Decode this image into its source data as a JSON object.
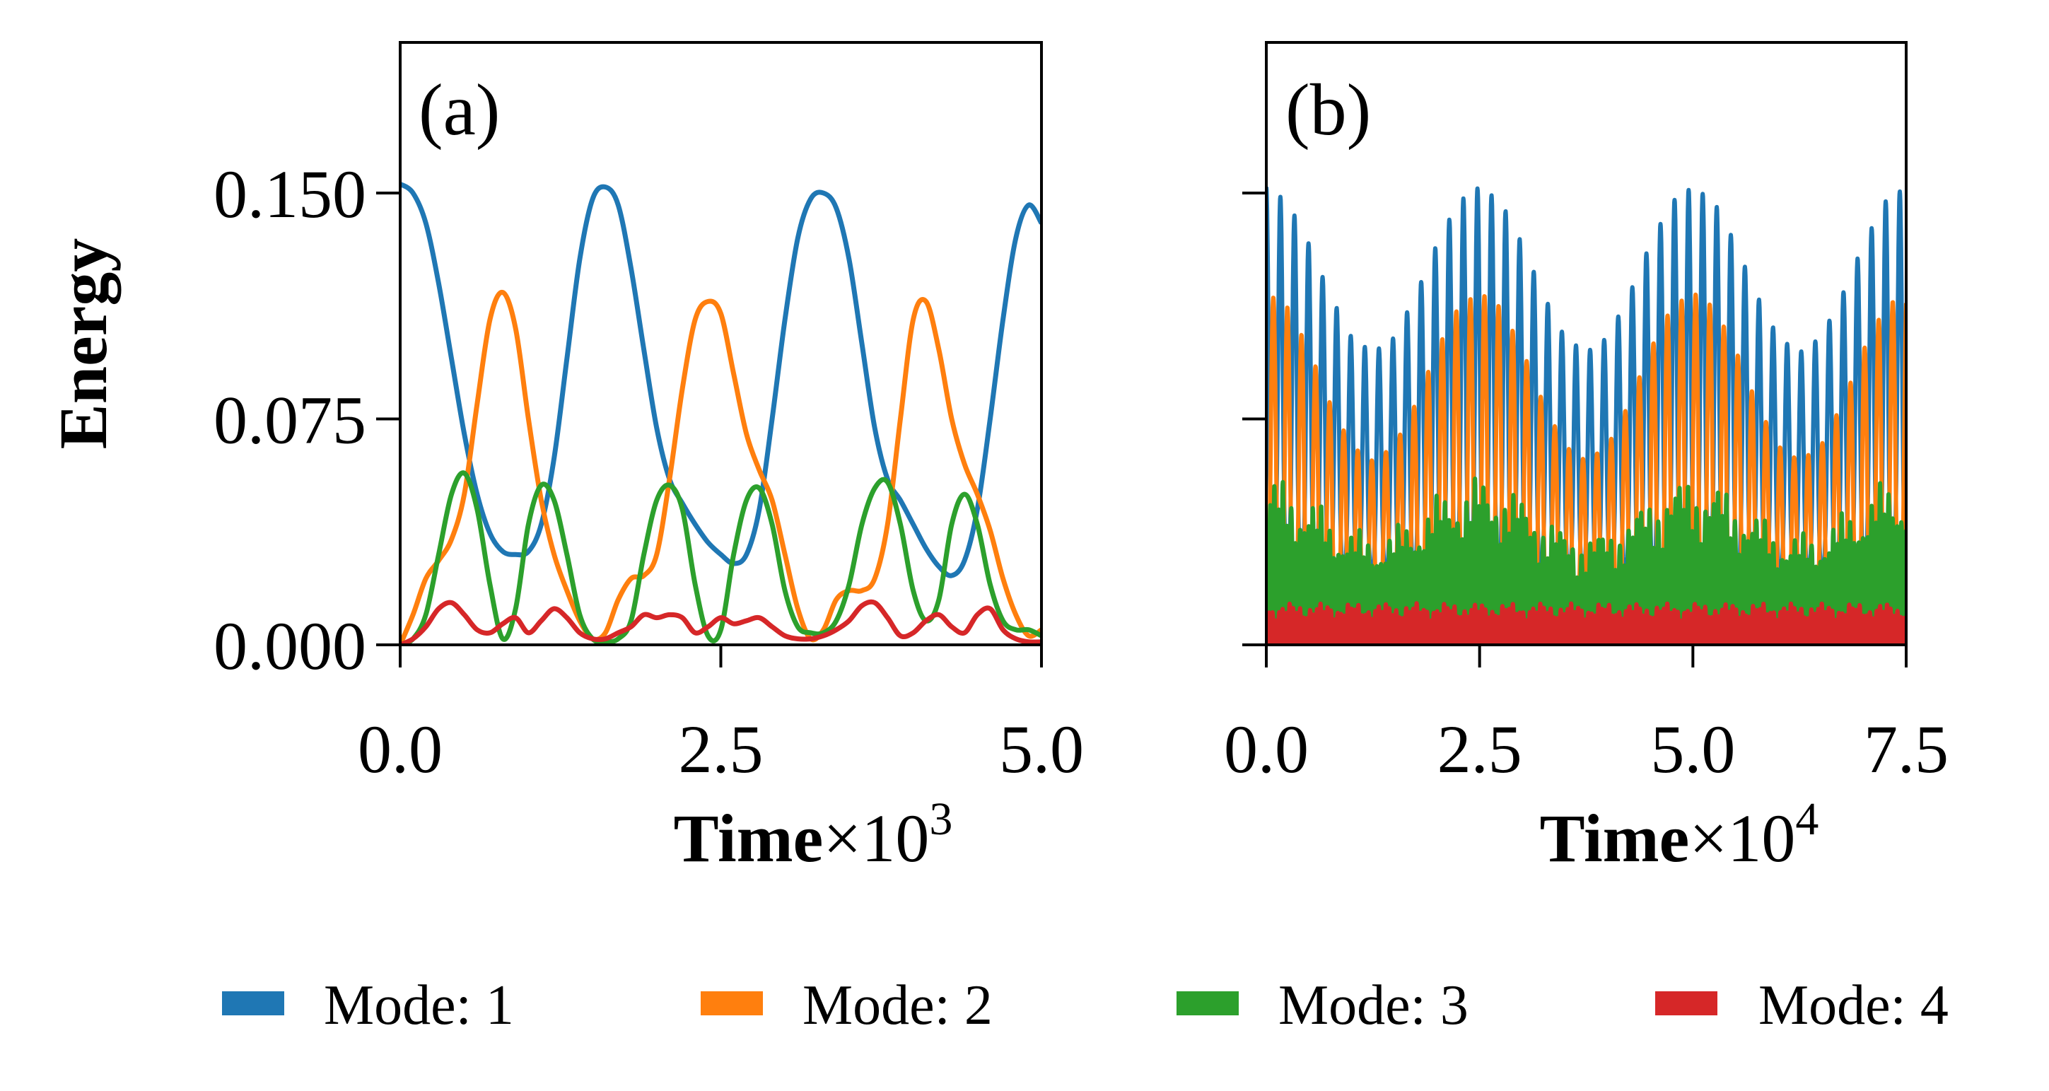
{
  "legend": {
    "placement": "bottom",
    "items": [
      {
        "label": "Mode: 1",
        "color": "#1f77b4"
      },
      {
        "label": "Mode: 2",
        "color": "#ff7f0e"
      },
      {
        "label": "Mode: 3",
        "color": "#2ca02c"
      },
      {
        "label": "Mode: 4",
        "color": "#d62728"
      }
    ]
  },
  "chart_data": [
    {
      "type": "line",
      "panel_label": "(a)",
      "ylabel": "Energy",
      "xlabel": "Time",
      "xlabel_multiplier": "×10",
      "xlabel_exponent": "3",
      "xlim": [
        0,
        5
      ],
      "ylim": [
        0,
        0.2
      ],
      "xticks": [
        "0.0",
        "2.5",
        "5.0"
      ],
      "xtick_values": [
        0,
        2.5,
        5
      ],
      "yticks": [
        "0.000",
        "0.075",
        "0.150"
      ],
      "ytick_values": [
        0,
        0.075,
        0.15
      ],
      "grid": false,
      "x": [
        0,
        0.1,
        0.2,
        0.3,
        0.4,
        0.5,
        0.6,
        0.7,
        0.8,
        0.9,
        1.0,
        1.1,
        1.2,
        1.3,
        1.4,
        1.5,
        1.6,
        1.7,
        1.8,
        1.9,
        2.0,
        2.1,
        2.2,
        2.3,
        2.4,
        2.5,
        2.6,
        2.7,
        2.8,
        2.9,
        3.0,
        3.1,
        3.2,
        3.3,
        3.4,
        3.5,
        3.6,
        3.7,
        3.8,
        3.9,
        4.0,
        4.1,
        4.2,
        4.3,
        4.4,
        4.5,
        4.6,
        4.7,
        4.8,
        4.9,
        5.0
      ],
      "series": [
        {
          "name": "Mode: 1",
          "color": "#1f77b4",
          "values": [
            0.153,
            0.15,
            0.14,
            0.12,
            0.095,
            0.07,
            0.05,
            0.037,
            0.031,
            0.03,
            0.031,
            0.04,
            0.062,
            0.095,
            0.128,
            0.148,
            0.152,
            0.146,
            0.125,
            0.098,
            0.072,
            0.055,
            0.047,
            0.04,
            0.034,
            0.03,
            0.027,
            0.03,
            0.045,
            0.075,
            0.108,
            0.135,
            0.148,
            0.15,
            0.145,
            0.128,
            0.1,
            0.072,
            0.055,
            0.048,
            0.04,
            0.032,
            0.026,
            0.023,
            0.028,
            0.045,
            0.075,
            0.108,
            0.135,
            0.146,
            0.14
          ]
        },
        {
          "name": "Mode: 2",
          "color": "#ff7f0e",
          "values": [
            0.0,
            0.01,
            0.022,
            0.028,
            0.035,
            0.05,
            0.08,
            0.108,
            0.117,
            0.105,
            0.075,
            0.048,
            0.03,
            0.018,
            0.008,
            0.002,
            0.004,
            0.015,
            0.022,
            0.023,
            0.03,
            0.055,
            0.085,
            0.108,
            0.114,
            0.11,
            0.09,
            0.07,
            0.058,
            0.048,
            0.03,
            0.012,
            0.002,
            0.005,
            0.015,
            0.018,
            0.018,
            0.022,
            0.04,
            0.075,
            0.108,
            0.114,
            0.098,
            0.075,
            0.06,
            0.05,
            0.038,
            0.022,
            0.01,
            0.003,
            0.005
          ]
        },
        {
          "name": "Mode: 3",
          "color": "#2ca02c",
          "values": [
            0.0,
            0.002,
            0.01,
            0.03,
            0.05,
            0.057,
            0.045,
            0.02,
            0.002,
            0.012,
            0.04,
            0.053,
            0.048,
            0.03,
            0.01,
            0.002,
            0.001,
            0.002,
            0.008,
            0.03,
            0.048,
            0.053,
            0.045,
            0.02,
            0.003,
            0.005,
            0.03,
            0.048,
            0.052,
            0.04,
            0.018,
            0.006,
            0.004,
            0.004,
            0.008,
            0.02,
            0.04,
            0.052,
            0.054,
            0.04,
            0.018,
            0.008,
            0.015,
            0.04,
            0.05,
            0.04,
            0.02,
            0.008,
            0.005,
            0.005,
            0.003
          ]
        },
        {
          "name": "Mode: 4",
          "color": "#d62728",
          "values": [
            0.0,
            0.002,
            0.006,
            0.012,
            0.014,
            0.01,
            0.005,
            0.004,
            0.007,
            0.009,
            0.004,
            0.008,
            0.012,
            0.009,
            0.004,
            0.002,
            0.002,
            0.004,
            0.006,
            0.01,
            0.009,
            0.01,
            0.009,
            0.004,
            0.006,
            0.009,
            0.007,
            0.008,
            0.009,
            0.006,
            0.003,
            0.002,
            0.002,
            0.003,
            0.005,
            0.008,
            0.013,
            0.014,
            0.009,
            0.003,
            0.004,
            0.008,
            0.01,
            0.006,
            0.004,
            0.01,
            0.012,
            0.005,
            0.002,
            0.001,
            0.001
          ]
        }
      ]
    },
    {
      "type": "line",
      "panel_label": "(b)",
      "xlabel": "Time",
      "xlabel_multiplier": "×10",
      "xlabel_exponent": "4",
      "xlim": [
        0,
        7.5
      ],
      "ylim": [
        0,
        0.2
      ],
      "xticks": [
        "0.0",
        "2.5",
        "5.0",
        "7.5"
      ],
      "xtick_values": [
        0,
        2.5,
        5,
        7.5
      ],
      "ytick_values": [
        0,
        0.075,
        0.15
      ],
      "ytick_labels_shown": false,
      "grid": false,
      "fast_oscillation_period": 0.165,
      "envelope_x": [
        0,
        0.25,
        0.5,
        0.75,
        1.0,
        1.25,
        1.5,
        1.75,
        2.0,
        2.25,
        2.5,
        2.75,
        3.0,
        3.25,
        3.5,
        3.75,
        4.0,
        4.25,
        4.5,
        4.75,
        5.0,
        5.25,
        5.5,
        5.75,
        6.0,
        6.25,
        6.5,
        6.75,
        7.0,
        7.25,
        7.5
      ],
      "series": [
        {
          "name": "Mode: 1",
          "color": "#1f77b4",
          "lower": 0.025,
          "upper_envelope": [
            0.152,
            0.147,
            0.133,
            0.116,
            0.102,
            0.097,
            0.102,
            0.116,
            0.133,
            0.147,
            0.152,
            0.147,
            0.133,
            0.116,
            0.102,
            0.097,
            0.102,
            0.116,
            0.133,
            0.147,
            0.152,
            0.147,
            0.133,
            0.116,
            0.102,
            0.097,
            0.102,
            0.116,
            0.133,
            0.147,
            0.152
          ]
        },
        {
          "name": "Mode: 2",
          "color": "#ff7f0e",
          "lower": 0.0,
          "upper_envelope": [
            0.117,
            0.112,
            0.098,
            0.08,
            0.066,
            0.061,
            0.066,
            0.08,
            0.098,
            0.112,
            0.117,
            0.112,
            0.098,
            0.08,
            0.066,
            0.061,
            0.066,
            0.08,
            0.098,
            0.112,
            0.117,
            0.112,
            0.098,
            0.08,
            0.066,
            0.061,
            0.066,
            0.08,
            0.098,
            0.112,
            0.117
          ]
        },
        {
          "name": "Mode: 3",
          "color": "#2ca02c",
          "lower": 0.0,
          "upper_envelope": [
            0.057,
            0.055,
            0.05,
            0.044,
            0.039,
            0.037,
            0.039,
            0.044,
            0.05,
            0.055,
            0.057,
            0.055,
            0.05,
            0.044,
            0.039,
            0.037,
            0.039,
            0.044,
            0.05,
            0.055,
            0.057,
            0.055,
            0.05,
            0.044,
            0.039,
            0.037,
            0.039,
            0.044,
            0.05,
            0.055,
            0.057
          ]
        },
        {
          "name": "Mode: 4",
          "color": "#d62728",
          "lower": 0.0,
          "upper_envelope": [
            0.014,
            0.014,
            0.014,
            0.014,
            0.014,
            0.014,
            0.014,
            0.014,
            0.014,
            0.014,
            0.014,
            0.014,
            0.014,
            0.014,
            0.014,
            0.014,
            0.014,
            0.014,
            0.014,
            0.014,
            0.014,
            0.014,
            0.014,
            0.014,
            0.014,
            0.014,
            0.014,
            0.014,
            0.014,
            0.014,
            0.014
          ]
        }
      ]
    }
  ]
}
